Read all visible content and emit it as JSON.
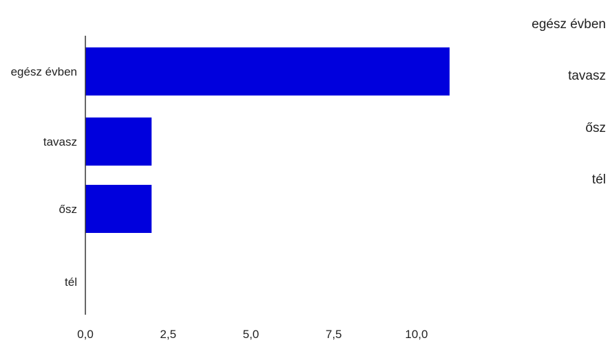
{
  "chart_data": {
    "type": "bar",
    "orientation": "horizontal",
    "categories": [
      "egész évben",
      "tavasz",
      "ősz",
      "tél"
    ],
    "values": [
      11,
      2,
      2,
      0
    ],
    "xlim": [
      0,
      11
    ],
    "xticks": [
      "0,0",
      "2,5",
      "5,0",
      "7,5",
      "10,0"
    ],
    "xtick_values": [
      0,
      2.5,
      5,
      7.5,
      10
    ],
    "legend_entries": [
      "egész évben",
      "tavasz",
      "ősz",
      "tél"
    ],
    "legend_position": "right",
    "grid": false,
    "bar_color": "#0000dd",
    "axis_color": "#333333"
  }
}
